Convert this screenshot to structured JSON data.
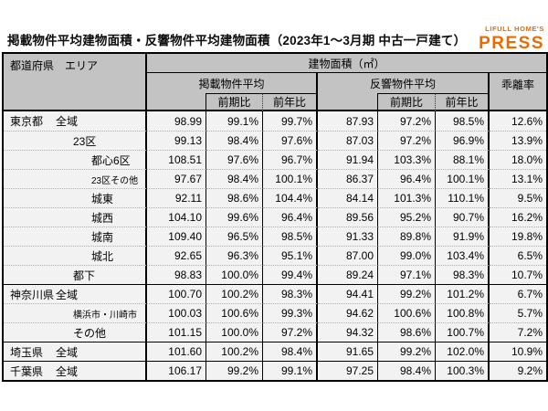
{
  "page": {
    "title": "掲載物件平均建物面積・反響物件平均建物面積（2023年1〜3月期 中古一戸建て）"
  },
  "logo": {
    "brand": "LIFULL HOME'S",
    "press": "PRESS",
    "color": "#ed6a00"
  },
  "colors": {
    "header_bg": "#c3c3c3",
    "body_bg": "#f2f2f2",
    "border": "#000000"
  },
  "table": {
    "header": {
      "stub": "都道府県　エリア",
      "area_unit": "建物面積（㎡）",
      "listed_avg": "掲載物件平均",
      "inquiry_avg": "反響物件平均",
      "deviation": "乖離率",
      "prev_period": "前期比",
      "prev_year": "前年比"
    },
    "rows": [
      {
        "pref": "東京都",
        "area": "全域",
        "level": 1,
        "small": false,
        "new_group": false,
        "cells": [
          "98.99",
          "99.1%",
          "99.7%",
          "87.93",
          "97.2%",
          "98.5%",
          "12.6%"
        ]
      },
      {
        "pref": "",
        "area": "23区",
        "level": 2,
        "small": false,
        "new_group": false,
        "cells": [
          "99.13",
          "98.4%",
          "97.6%",
          "87.03",
          "97.2%",
          "96.9%",
          "13.9%"
        ]
      },
      {
        "pref": "",
        "area": "都心6区",
        "level": 3,
        "small": false,
        "new_group": false,
        "cells": [
          "108.51",
          "97.6%",
          "96.7%",
          "91.94",
          "103.3%",
          "88.1%",
          "18.0%"
        ]
      },
      {
        "pref": "",
        "area": "23区その他",
        "level": 3,
        "small": true,
        "new_group": false,
        "cells": [
          "97.67",
          "98.4%",
          "100.1%",
          "86.37",
          "96.4%",
          "100.1%",
          "13.1%"
        ]
      },
      {
        "pref": "",
        "area": "城東",
        "level": 3,
        "small": false,
        "new_group": false,
        "cells": [
          "92.11",
          "98.6%",
          "104.4%",
          "84.14",
          "101.3%",
          "110.1%",
          "9.5%"
        ]
      },
      {
        "pref": "",
        "area": "城西",
        "level": 3,
        "small": false,
        "new_group": false,
        "cells": [
          "104.10",
          "99.6%",
          "96.4%",
          "89.56",
          "95.2%",
          "90.7%",
          "16.2%"
        ]
      },
      {
        "pref": "",
        "area": "城南",
        "level": 3,
        "small": false,
        "new_group": false,
        "cells": [
          "109.40",
          "96.5%",
          "98.5%",
          "91.33",
          "89.8%",
          "91.9%",
          "19.8%"
        ]
      },
      {
        "pref": "",
        "area": "城北",
        "level": 3,
        "small": false,
        "new_group": false,
        "cells": [
          "92.65",
          "96.3%",
          "95.1%",
          "87.00",
          "99.0%",
          "103.4%",
          "6.5%"
        ]
      },
      {
        "pref": "",
        "area": "都下",
        "level": 2,
        "small": false,
        "new_group": false,
        "cells": [
          "98.83",
          "100.0%",
          "99.4%",
          "89.24",
          "97.1%",
          "98.3%",
          "10.7%"
        ]
      },
      {
        "pref": "神奈川県",
        "area": "全域",
        "level": 1,
        "small": false,
        "new_group": true,
        "cells": [
          "100.70",
          "100.2%",
          "98.3%",
          "94.41",
          "99.2%",
          "101.2%",
          "6.7%"
        ]
      },
      {
        "pref": "",
        "area": "横浜市・川崎市",
        "level": 2,
        "small": true,
        "new_group": false,
        "cells": [
          "100.03",
          "100.6%",
          "99.3%",
          "94.62",
          "100.6%",
          "100.8%",
          "5.7%"
        ]
      },
      {
        "pref": "",
        "area": "その他",
        "level": 2,
        "small": false,
        "new_group": false,
        "cells": [
          "101.15",
          "100.0%",
          "97.2%",
          "94.32",
          "98.6%",
          "100.7%",
          "7.2%"
        ]
      },
      {
        "pref": "埼玉県",
        "area": "全域",
        "level": 1,
        "small": false,
        "new_group": true,
        "cells": [
          "101.60",
          "100.2%",
          "98.4%",
          "91.65",
          "99.2%",
          "102.0%",
          "10.9%"
        ]
      },
      {
        "pref": "千葉県",
        "area": "全域",
        "level": 1,
        "small": false,
        "new_group": true,
        "cells": [
          "106.17",
          "99.2%",
          "99.1%",
          "97.25",
          "98.4%",
          "100.3%",
          "9.2%"
        ]
      }
    ]
  },
  "chart_data": {
    "type": "table",
    "title": "掲載物件平均建物面積・反響物件平均建物面積（2023年1〜3月期 中古一戸建て）",
    "unit": "建物面積（㎡）",
    "columns": [
      "都道府県",
      "エリア",
      "掲載物件平均",
      "掲載 前期比",
      "掲載 前年比",
      "反響物件平均",
      "反響 前期比",
      "反響 前年比",
      "乖離率"
    ],
    "rows": [
      [
        "東京都",
        "全域",
        98.99,
        "99.1%",
        "99.7%",
        87.93,
        "97.2%",
        "98.5%",
        "12.6%"
      ],
      [
        "東京都",
        "23区",
        99.13,
        "98.4%",
        "97.6%",
        87.03,
        "97.2%",
        "96.9%",
        "13.9%"
      ],
      [
        "東京都",
        "都心6区",
        108.51,
        "97.6%",
        "96.7%",
        91.94,
        "103.3%",
        "88.1%",
        "18.0%"
      ],
      [
        "東京都",
        "23区その他",
        97.67,
        "98.4%",
        "100.1%",
        86.37,
        "96.4%",
        "100.1%",
        "13.1%"
      ],
      [
        "東京都",
        "城東",
        92.11,
        "98.6%",
        "104.4%",
        84.14,
        "101.3%",
        "110.1%",
        "9.5%"
      ],
      [
        "東京都",
        "城西",
        104.1,
        "99.6%",
        "96.4%",
        89.56,
        "95.2%",
        "90.7%",
        "16.2%"
      ],
      [
        "東京都",
        "城南",
        109.4,
        "96.5%",
        "98.5%",
        91.33,
        "89.8%",
        "91.9%",
        "19.8%"
      ],
      [
        "東京都",
        "城北",
        92.65,
        "96.3%",
        "95.1%",
        87.0,
        "99.0%",
        "103.4%",
        "6.5%"
      ],
      [
        "東京都",
        "都下",
        98.83,
        "100.0%",
        "99.4%",
        89.24,
        "97.1%",
        "98.3%",
        "10.7%"
      ],
      [
        "神奈川県",
        "全域",
        100.7,
        "100.2%",
        "98.3%",
        94.41,
        "99.2%",
        "101.2%",
        "6.7%"
      ],
      [
        "神奈川県",
        "横浜市・川崎市",
        100.03,
        "100.6%",
        "99.3%",
        94.62,
        "100.6%",
        "100.8%",
        "5.7%"
      ],
      [
        "神奈川県",
        "その他",
        101.15,
        "100.0%",
        "97.2%",
        94.32,
        "98.6%",
        "100.7%",
        "7.2%"
      ],
      [
        "埼玉県",
        "全域",
        101.6,
        "100.2%",
        "98.4%",
        91.65,
        "99.2%",
        "102.0%",
        "10.9%"
      ],
      [
        "千葉県",
        "全域",
        106.17,
        "99.2%",
        "99.1%",
        97.25,
        "98.4%",
        "100.3%",
        "9.2%"
      ]
    ]
  }
}
